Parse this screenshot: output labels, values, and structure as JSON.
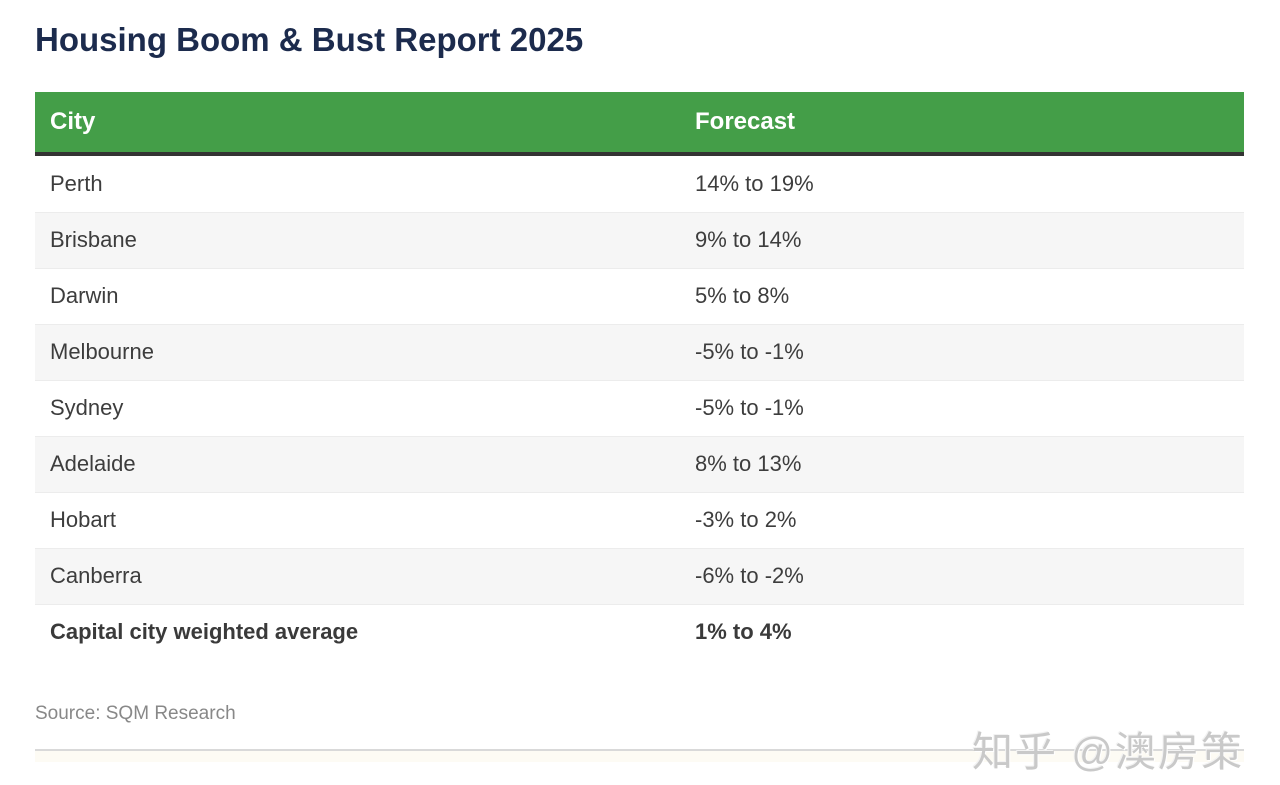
{
  "title": "Housing Boom & Bust Report 2025",
  "chart_data": {
    "type": "table",
    "title": "Housing Boom & Bust Report 2025",
    "columns": [
      "City",
      "Forecast"
    ],
    "rows": [
      {
        "city": "Perth",
        "forecast": "14% to 19%",
        "emphasis": false
      },
      {
        "city": "Brisbane",
        "forecast": "9% to 14%",
        "emphasis": false
      },
      {
        "city": "Darwin",
        "forecast": "5% to 8%",
        "emphasis": false
      },
      {
        "city": "Melbourne",
        "forecast": "-5% to -1%",
        "emphasis": false
      },
      {
        "city": "Sydney",
        "forecast": "-5% to -1%",
        "emphasis": false
      },
      {
        "city": "Adelaide",
        "forecast": "8% to 13%",
        "emphasis": false
      },
      {
        "city": "Hobart",
        "forecast": "-3% to 2%",
        "emphasis": false
      },
      {
        "city": "Canberra",
        "forecast": "-6% to -2%",
        "emphasis": false
      },
      {
        "city": "Capital city weighted average",
        "forecast": "1% to 4%",
        "emphasis": true
      }
    ],
    "source_note": "Source: SQM Research",
    "layout": {
      "zebra_stripes": true,
      "header_background": "green",
      "grid": "horizontal-only"
    }
  },
  "footer": {
    "source": "Source: SQM Research",
    "watermark": "知乎 @澳房策"
  },
  "colors": {
    "header_green": "#449e48",
    "header_text": "#ffffff",
    "header_bottom_border": "#333333",
    "title_navy": "#1c2b4d",
    "row_stripe": "#f6f6f6",
    "row_text": "#3d3d3d",
    "row_border": "#ececec",
    "source_gray": "#888888",
    "divider_gray": "#d9d9d9",
    "watermark_gray": "#c9c9c9"
  }
}
